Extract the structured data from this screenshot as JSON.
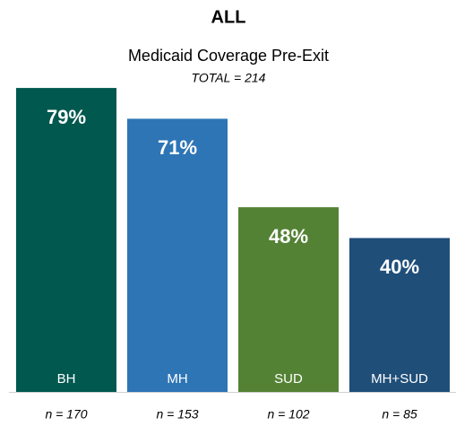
{
  "chart_data": {
    "type": "bar",
    "title": "ALL",
    "subtitle": "Medicaid Coverage Pre-Exit",
    "annotation": "TOTAL = 214",
    "categories": [
      "BH",
      "MH",
      "SUD",
      "MH+SUD"
    ],
    "values": [
      79,
      71,
      48,
      40
    ],
    "value_labels": [
      "79%",
      "71%",
      "48%",
      "40%"
    ],
    "colors": [
      "#00584f",
      "#2e75b6",
      "#548235",
      "#1f4e79"
    ],
    "n_labels": [
      "n = 170",
      "n = 153",
      "n = 102",
      "n = 85"
    ]
  }
}
